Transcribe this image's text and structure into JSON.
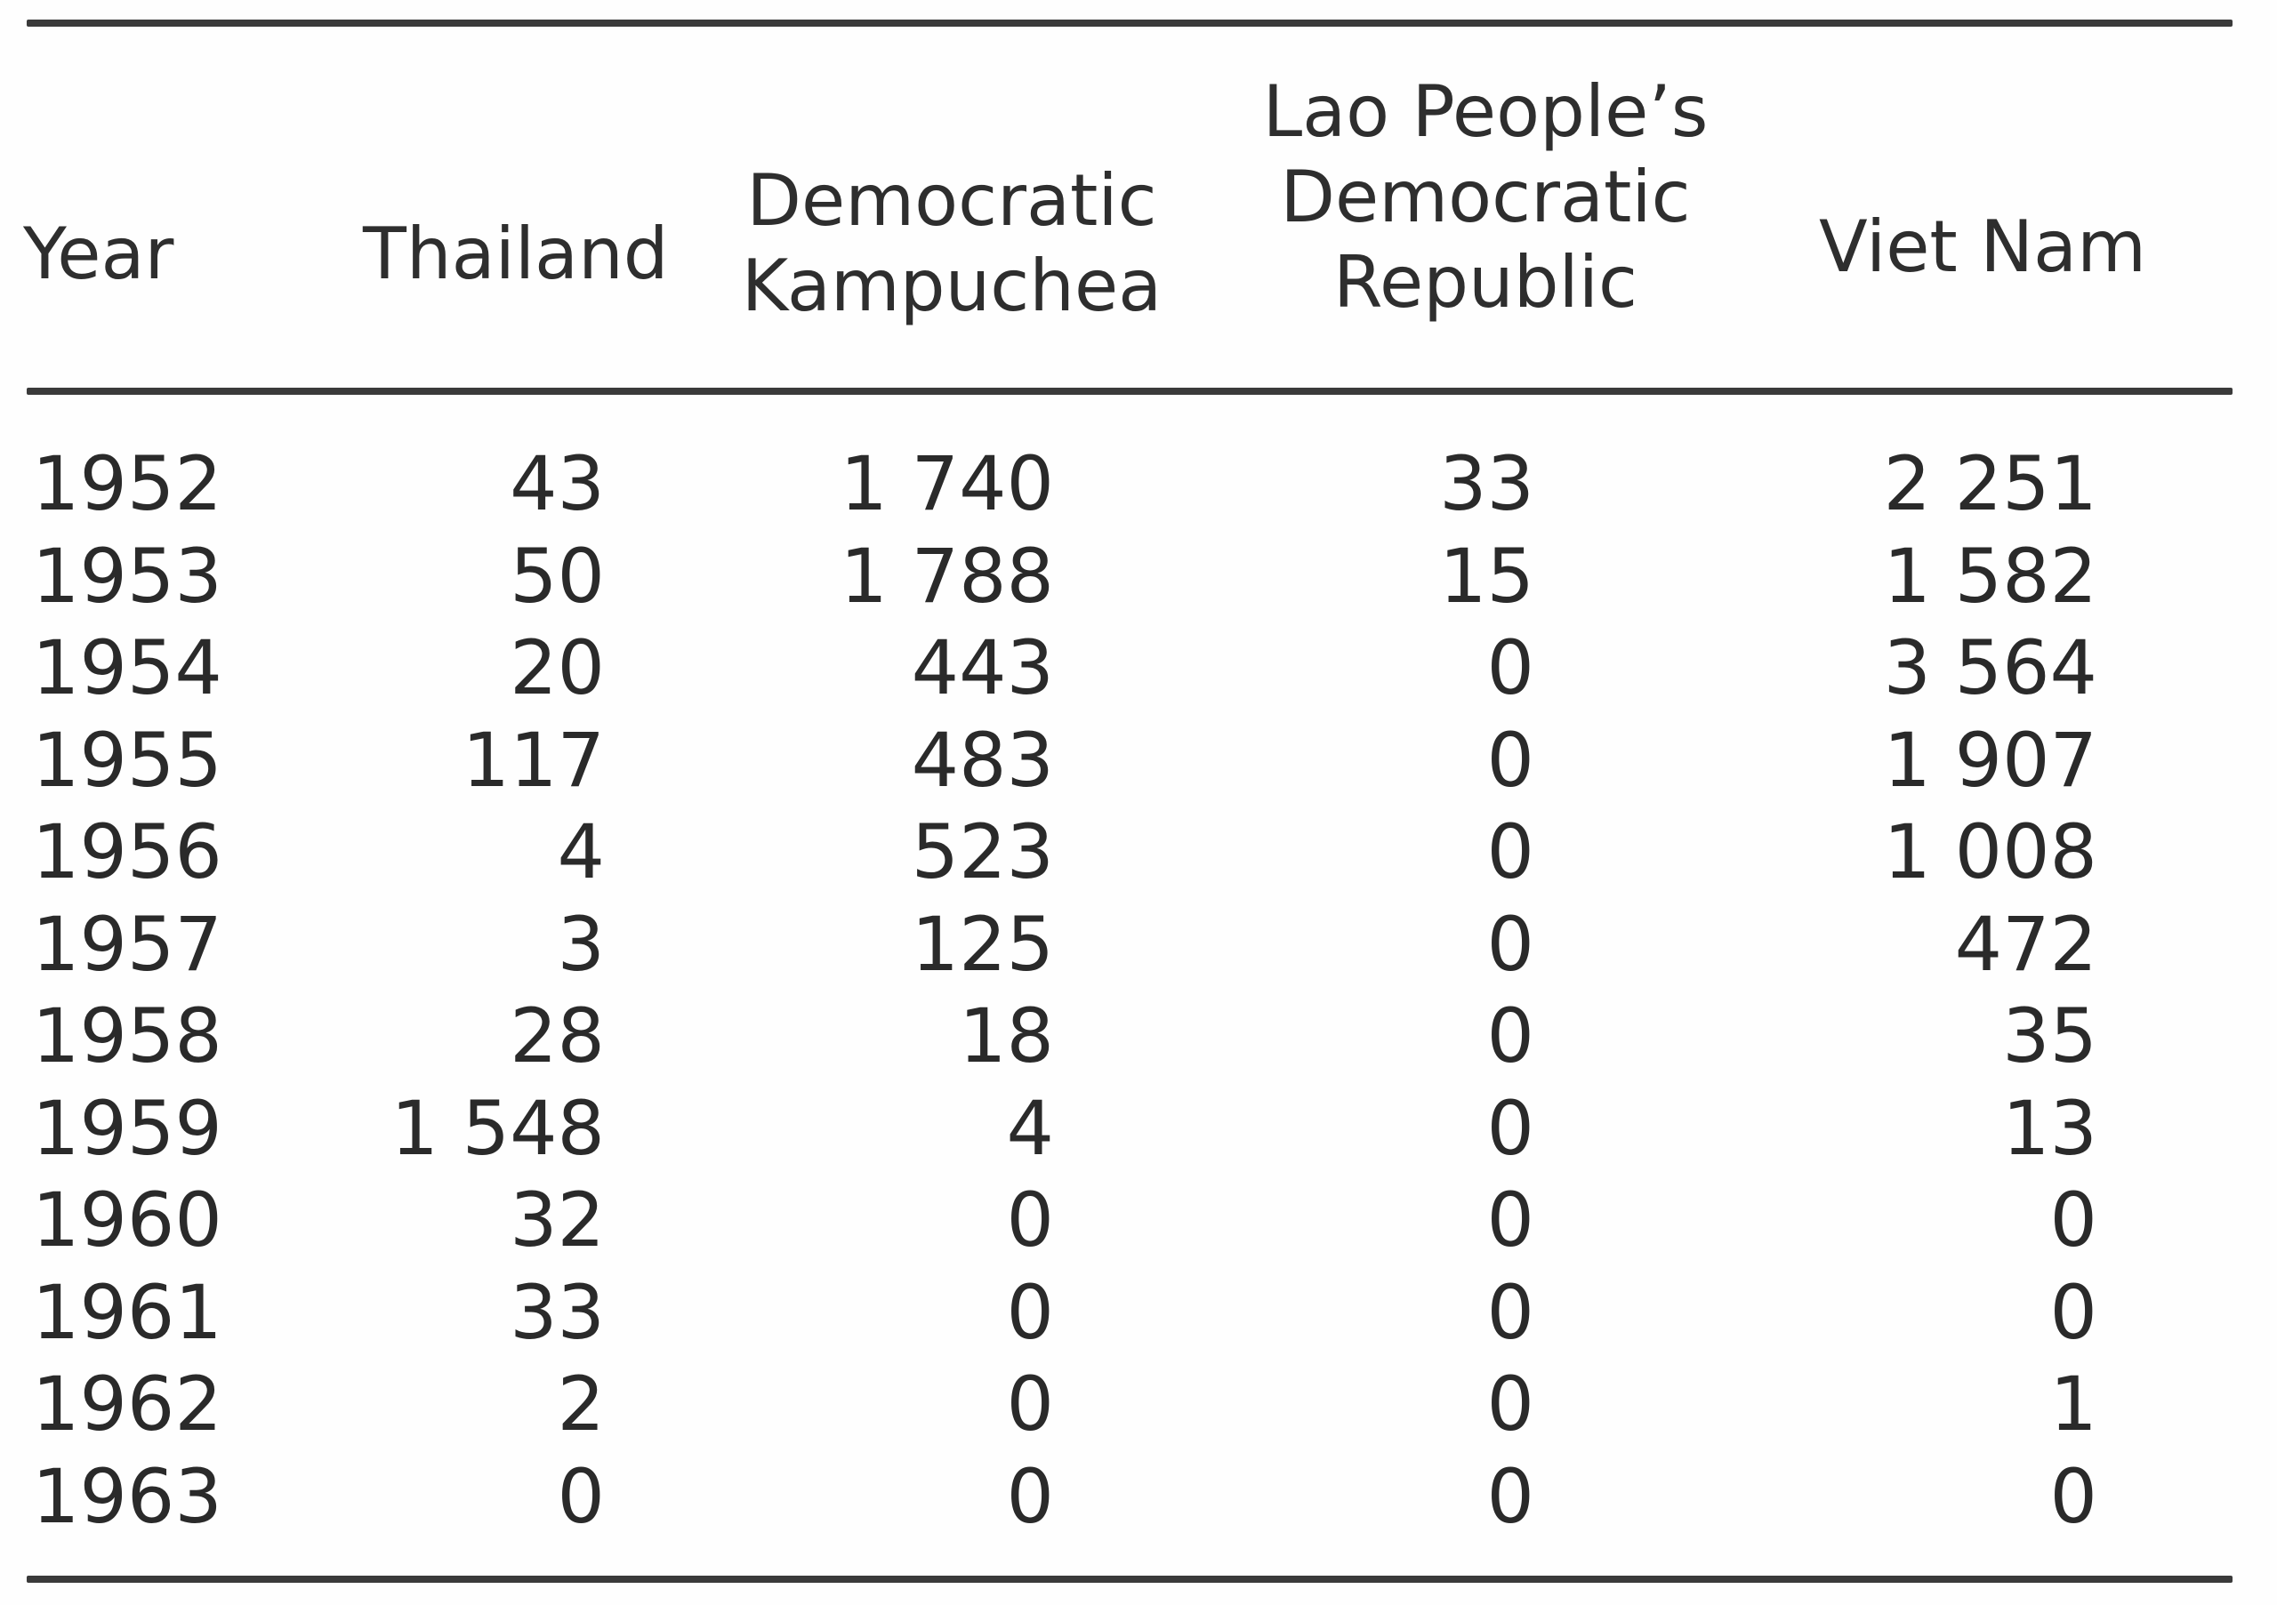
{
  "table": {
    "headers": {
      "year": "Year",
      "thailand": "Thailand",
      "kampuchea_line1": "Democratic",
      "kampuchea_line2": "Kampuchea",
      "lao_line1": "Lao People’s",
      "lao_line2": "Democratic",
      "lao_line3": "Republic",
      "vietnam": "Viet Nam"
    },
    "rows": [
      {
        "year": "1952",
        "thailand": "43",
        "kampuchea": "1 740",
        "lao": "33",
        "vietnam": "2 251"
      },
      {
        "year": "1953",
        "thailand": "50",
        "kampuchea": "1 788",
        "lao": "15",
        "vietnam": "1 582"
      },
      {
        "year": "1954",
        "thailand": "20",
        "kampuchea": "443",
        "lao": "0",
        "vietnam": "3 564"
      },
      {
        "year": "1955",
        "thailand": "117",
        "kampuchea": "483",
        "lao": "0",
        "vietnam": "1 907"
      },
      {
        "year": "1956",
        "thailand": "4",
        "kampuchea": "523",
        "lao": "0",
        "vietnam": "1 008"
      },
      {
        "year": "1957",
        "thailand": "3",
        "kampuchea": "125",
        "lao": "0",
        "vietnam": "472"
      },
      {
        "year": "1958",
        "thailand": "28",
        "kampuchea": "18",
        "lao": "0",
        "vietnam": "35"
      },
      {
        "year": "1959",
        "thailand": "1 548",
        "kampuchea": "4",
        "lao": "0",
        "vietnam": "13"
      },
      {
        "year": "1960",
        "thailand": "32",
        "kampuchea": "0",
        "lao": "0",
        "vietnam": "0"
      },
      {
        "year": "1961",
        "thailand": "33",
        "kampuchea": "0",
        "lao": "0",
        "vietnam": "0"
      },
      {
        "year": "1962",
        "thailand": "2",
        "kampuchea": "0",
        "lao": "0",
        "vietnam": "1"
      },
      {
        "year": "1963",
        "thailand": "0",
        "kampuchea": "0",
        "lao": "0",
        "vietnam": "0"
      }
    ]
  }
}
